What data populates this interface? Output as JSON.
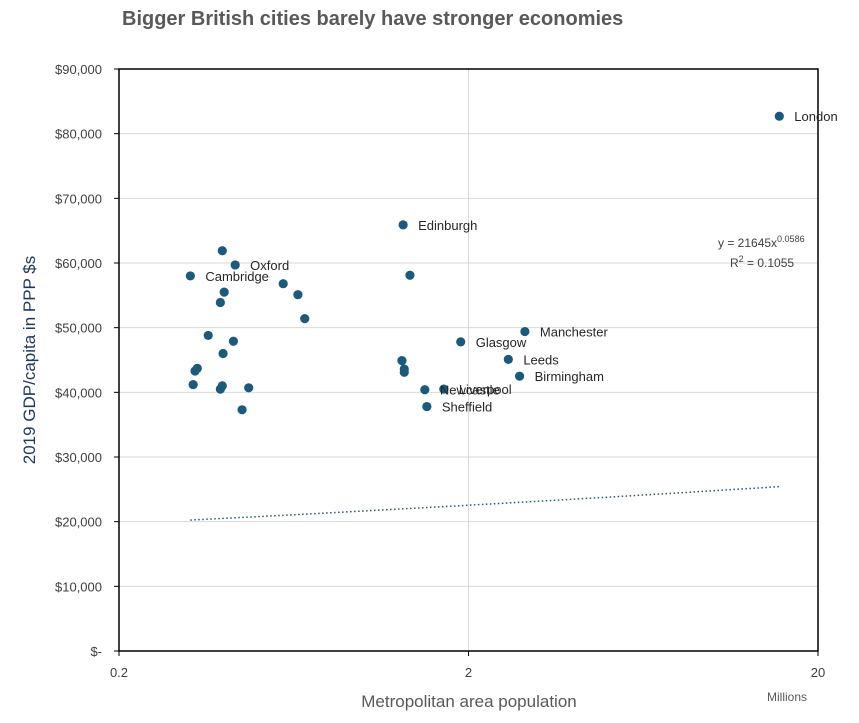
{
  "chart_data": {
    "type": "scatter",
    "title": "Bigger British cities barely have stronger economies",
    "xlabel": "Metropolitan area population",
    "xunits": "Millions",
    "ylabel": "2019 GDP/capita in PPP $s",
    "xscale": "log",
    "xlim": [
      0.2,
      20
    ],
    "ylim": [
      0,
      90000
    ],
    "xticks": [
      "0.2",
      "2",
      "20"
    ],
    "yticks": [
      "$-",
      "$10,000",
      "$20,000",
      "$30,000",
      "$40,000",
      "$50,000",
      "$60,000",
      "$70,000",
      "$80,000",
      "$90,000"
    ],
    "grid": "major gridlines",
    "marker_color": "#1b5a7a",
    "trendline": {
      "type": "power",
      "equation": "y = 21645x",
      "exponent": "0.0586",
      "r2": "R",
      "r2_sup": "2",
      "r2_value": " = 0.1055",
      "x_range": [
        0.32,
        15.5
      ],
      "coef": 21645,
      "power": 0.0586,
      "color": "#1b5a7a"
    },
    "points": [
      {
        "x": 15.5,
        "y": 82700,
        "label": "London"
      },
      {
        "x": 1.3,
        "y": 65900,
        "label": "Edinburgh"
      },
      {
        "x": 0.43,
        "y": 59700,
        "label": "Oxford"
      },
      {
        "x": 0.32,
        "y": 58000,
        "label": "Cambridge"
      },
      {
        "x": 2.9,
        "y": 49400,
        "label": "Manchester"
      },
      {
        "x": 1.9,
        "y": 47800,
        "label": "Glasgow"
      },
      {
        "x": 2.6,
        "y": 45100,
        "label": "Leeds"
      },
      {
        "x": 2.8,
        "y": 42500,
        "label": "Birmingham"
      },
      {
        "x": 1.5,
        "y": 40400,
        "label": "Newcastle"
      },
      {
        "x": 1.7,
        "y": 40500,
        "label": "Liverpool"
      },
      {
        "x": 1.52,
        "y": 37800,
        "label": "Sheffield"
      },
      {
        "x": 0.395,
        "y": 61900,
        "label": ""
      },
      {
        "x": 1.36,
        "y": 58100,
        "label": ""
      },
      {
        "x": 0.4,
        "y": 55500,
        "label": ""
      },
      {
        "x": 0.39,
        "y": 53900,
        "label": ""
      },
      {
        "x": 0.59,
        "y": 56800,
        "label": ""
      },
      {
        "x": 0.65,
        "y": 55100,
        "label": ""
      },
      {
        "x": 0.68,
        "y": 51400,
        "label": ""
      },
      {
        "x": 0.36,
        "y": 48800,
        "label": ""
      },
      {
        "x": 0.425,
        "y": 47900,
        "label": ""
      },
      {
        "x": 0.397,
        "y": 46000,
        "label": ""
      },
      {
        "x": 0.33,
        "y": 43300,
        "label": ""
      },
      {
        "x": 0.335,
        "y": 43700,
        "label": ""
      },
      {
        "x": 0.326,
        "y": 41200,
        "label": ""
      },
      {
        "x": 0.395,
        "y": 41000,
        "label": ""
      },
      {
        "x": 0.39,
        "y": 40500,
        "label": ""
      },
      {
        "x": 0.47,
        "y": 40700,
        "label": ""
      },
      {
        "x": 0.45,
        "y": 37300,
        "label": ""
      },
      {
        "x": 1.29,
        "y": 44900,
        "label": ""
      },
      {
        "x": 1.31,
        "y": 43600,
        "label": ""
      },
      {
        "x": 1.31,
        "y": 43100,
        "label": ""
      }
    ]
  }
}
